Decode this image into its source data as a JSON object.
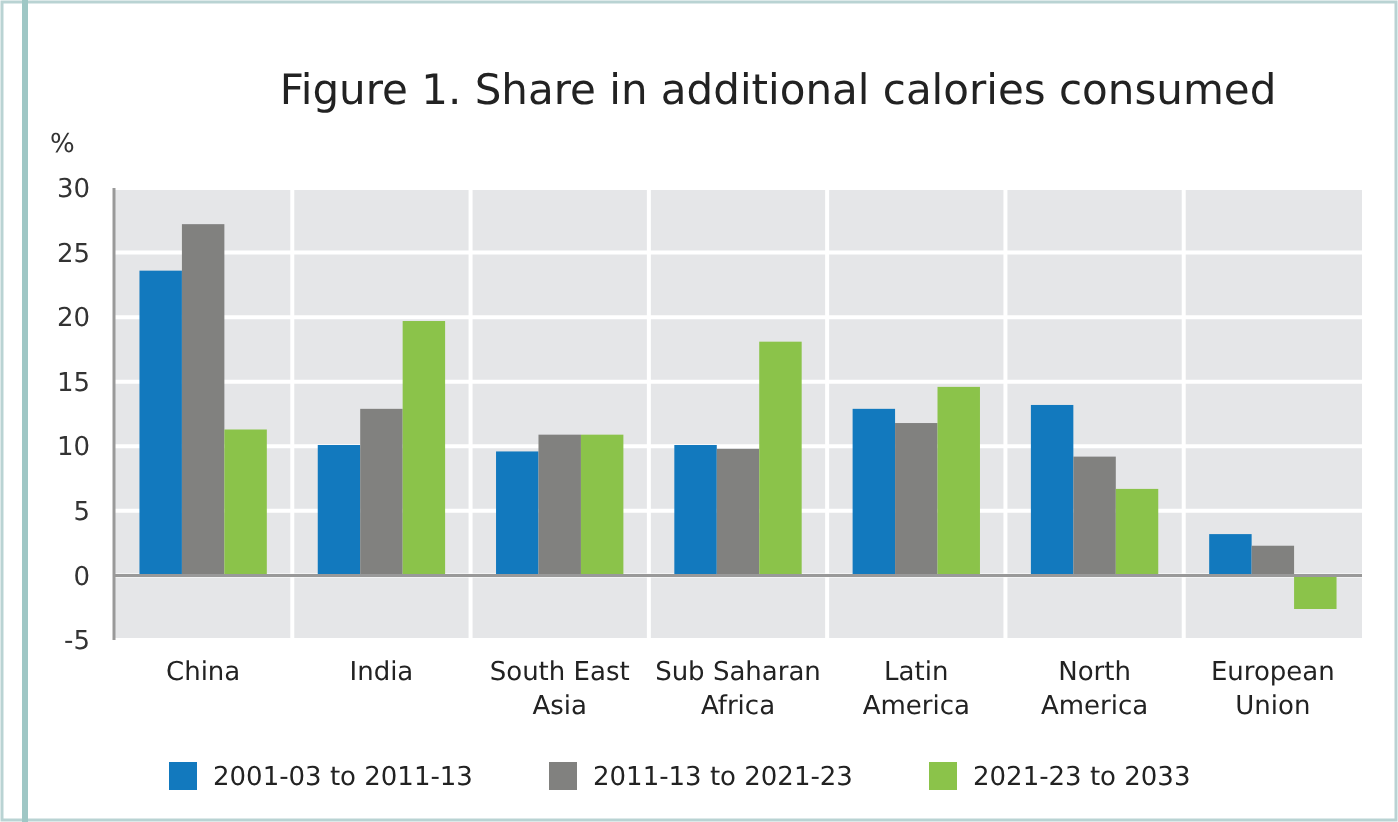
{
  "chart_data": {
    "type": "bar",
    "title": "Figure 1. Share in additional calories consumed",
    "ylabel": "%",
    "categories": [
      "China",
      "India",
      "South East Asia",
      "Sub Saharan Africa",
      "Latin America",
      "North America",
      "European Union"
    ],
    "series": [
      {
        "name": "2001-03 to 2011-13",
        "color": "#1279be",
        "values": [
          23.6,
          10.1,
          9.6,
          10.1,
          12.9,
          13.2,
          3.2
        ]
      },
      {
        "name": "2011-13 to 2021-23",
        "color": "#81817f",
        "values": [
          27.2,
          12.9,
          10.9,
          9.8,
          11.8,
          9.2,
          2.3
        ]
      },
      {
        "name": "2021-23 to 2033",
        "color": "#8bc34a",
        "values": [
          11.3,
          19.7,
          10.9,
          18.1,
          14.6,
          6.7,
          -2.6
        ]
      }
    ],
    "ylim": [
      -5,
      30
    ],
    "yticks": [
      -5,
      0,
      5,
      10,
      15,
      20,
      25,
      30
    ],
    "grid": true,
    "legend": "bottom"
  }
}
